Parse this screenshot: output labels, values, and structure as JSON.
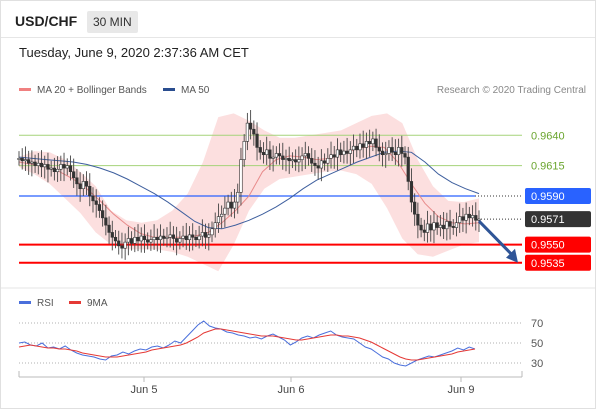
{
  "header": {
    "symbol": "USD/CHF",
    "timeframe": "30 MIN",
    "timestamp": "Tuesday, June 9, 2020 2:37:36 AM CET"
  },
  "chart_data": [
    {
      "type": "line",
      "title": "",
      "legend": [
        {
          "name": "MA 20 + Bollinger Bands",
          "color": "#f08080"
        },
        {
          "name": "MA 50",
          "color": "#2a4d8f"
        }
      ],
      "copyright": "Research © 2020 Trading Central",
      "ylim": [
        0.952,
        0.966
      ],
      "x_ticks": [
        "Jun 5",
        "Jun 6",
        "Jun 9"
      ],
      "levels": [
        {
          "value": 0.964,
          "label": "0.9640",
          "color": "#8bc34a",
          "kind": "resistance"
        },
        {
          "value": 0.9615,
          "label": "0.9615",
          "color": "#8bc34a",
          "kind": "resistance"
        },
        {
          "value": 0.959,
          "label": "0.9590",
          "color": "#2962ff",
          "kind": "pivot"
        },
        {
          "value": 0.9571,
          "label": "0.9571",
          "color": "#333333",
          "kind": "last"
        },
        {
          "value": 0.955,
          "label": "0.9550",
          "color": "#ff0000",
          "kind": "support"
        },
        {
          "value": 0.9535,
          "label": "0.9535",
          "color": "#ff0000",
          "kind": "support"
        }
      ],
      "series": [
        {
          "name": "Price",
          "values": [
            0.9621,
            0.9619,
            0.962,
            0.9617,
            0.9618,
            0.9615,
            0.9617,
            0.9614,
            0.9616,
            0.9612,
            0.9613,
            0.961,
            0.9612,
            0.9616,
            0.9613,
            0.9615,
            0.961,
            0.9605,
            0.96,
            0.9596,
            0.9602,
            0.9598,
            0.959,
            0.9586,
            0.9583,
            0.9578,
            0.9572,
            0.9566,
            0.956,
            0.9556,
            0.9553,
            0.9549,
            0.9547,
            0.9552,
            0.9555,
            0.9551,
            0.9556,
            0.9553,
            0.9557,
            0.9554,
            0.9552,
            0.9554,
            0.9556,
            0.9554,
            0.9557,
            0.9555,
            0.9556,
            0.9558,
            0.9555,
            0.9552,
            0.9555,
            0.9557,
            0.9554,
            0.9558,
            0.9556,
            0.9554,
            0.9557,
            0.956,
            0.9556,
            0.9558,
            0.9563,
            0.9568,
            0.9573,
            0.9575,
            0.958,
            0.9585,
            0.958,
            0.9585,
            0.9593,
            0.962,
            0.9635,
            0.965,
            0.9645,
            0.9641,
            0.963,
            0.9626,
            0.9624,
            0.9628,
            0.9621,
            0.9622,
            0.9625,
            0.9623,
            0.962,
            0.9621,
            0.9619,
            0.962,
            0.9618,
            0.962,
            0.9623,
            0.9625,
            0.9621,
            0.9617,
            0.9615,
            0.9613,
            0.9619,
            0.9617,
            0.9621,
            0.9624,
            0.9622,
            0.9628,
            0.9624,
            0.9627,
            0.9625,
            0.9628,
            0.9631,
            0.9628,
            0.9633,
            0.963,
            0.9635,
            0.9633,
            0.9637,
            0.963,
            0.9627,
            0.9624,
            0.9625,
            0.963,
            0.9626,
            0.9624,
            0.963,
            0.9625,
            0.9622,
            0.9602,
            0.9585,
            0.9575,
            0.9566,
            0.9562,
            0.956,
            0.9567,
            0.9562,
            0.9568,
            0.9564,
            0.9566,
            0.9563,
            0.9569,
            0.9565,
            0.9564,
            0.9568,
            0.9573,
            0.957,
            0.9575,
            0.9572,
            0.9574,
            0.957,
            0.9571
          ]
        },
        {
          "name": "MA 50",
          "values": [
            0.9622,
            0.9621,
            0.962,
            0.9619,
            0.9618,
            0.9616,
            0.9613,
            0.9609,
            0.9604,
            0.9598,
            0.9592,
            0.9585,
            0.9577,
            0.9569,
            0.9564,
            0.9563,
            0.9566,
            0.957,
            0.9575,
            0.9581,
            0.9588,
            0.9596,
            0.9603,
            0.9608,
            0.9613,
            0.9618,
            0.9622,
            0.9626,
            0.9627,
            0.9626,
            0.9618,
            0.9608,
            0.9601,
            0.9596,
            0.9592
          ]
        },
        {
          "name": "MA 20",
          "values": [
            0.9618,
            0.9616,
            0.9614,
            0.961,
            0.9604,
            0.9596,
            0.9586,
            0.9575,
            0.9566,
            0.9559,
            0.9556,
            0.9556,
            0.9556,
            0.9557,
            0.956,
            0.9568,
            0.9578,
            0.959,
            0.961,
            0.962,
            0.9623,
            0.9622,
            0.962,
            0.9621,
            0.9625,
            0.9629,
            0.9631,
            0.963,
            0.9618,
            0.96,
            0.9584,
            0.9573,
            0.9568,
            0.9567,
            0.9568
          ]
        }
      ],
      "bollinger_upper": [
        0.9622,
        0.9627,
        0.9626,
        0.962,
        0.961,
        0.9598,
        0.9578,
        0.957,
        0.9568,
        0.957,
        0.9578,
        0.9592,
        0.9618,
        0.9655,
        0.9658,
        0.9652,
        0.9644,
        0.9638,
        0.9638,
        0.964,
        0.9642,
        0.9644,
        0.965,
        0.9656,
        0.9658,
        0.965,
        0.962,
        0.9598,
        0.9586,
        0.9585,
        0.9588
      ],
      "bollinger_lower": [
        0.9614,
        0.9608,
        0.96,
        0.9588,
        0.9576,
        0.956,
        0.955,
        0.9546,
        0.9546,
        0.9546,
        0.9544,
        0.954,
        0.9534,
        0.9528,
        0.955,
        0.9578,
        0.9596,
        0.9604,
        0.9606,
        0.9608,
        0.961,
        0.9611,
        0.9608,
        0.96,
        0.958,
        0.9555,
        0.9542,
        0.954,
        0.9545,
        0.955,
        0.9552
      ],
      "projection": {
        "from": 0.9571,
        "to": 0.9535
      }
    },
    {
      "type": "line",
      "title": "",
      "legend": [
        {
          "name": "RSI",
          "color": "#4a6fdc"
        },
        {
          "name": "9MA",
          "color": "#e53935"
        }
      ],
      "ylim": [
        20,
        80
      ],
      "y_ticks": [
        "70",
        "50",
        "30"
      ],
      "series": [
        {
          "name": "RSI",
          "values": [
            50,
            51,
            48,
            47,
            50,
            45,
            46,
            44,
            47,
            43,
            40,
            38,
            37,
            36,
            34,
            33,
            37,
            38,
            41,
            39,
            42,
            44,
            43,
            46,
            47,
            45,
            48,
            52,
            50,
            56,
            62,
            68,
            72,
            67,
            65,
            64,
            61,
            60,
            58,
            57,
            55,
            56,
            54,
            57,
            59,
            56,
            53,
            48,
            51,
            55,
            57,
            55,
            58,
            60,
            62,
            58,
            56,
            55,
            54,
            50,
            46,
            44,
            40,
            36,
            34,
            30,
            28,
            27,
            30,
            33,
            35,
            37,
            36,
            38,
            40,
            42,
            45,
            43,
            46,
            44
          ]
        },
        {
          "name": "9MA",
          "values": [
            46,
            47,
            48,
            47,
            46,
            45,
            45,
            44,
            44,
            43,
            42,
            40,
            39,
            38,
            37,
            36,
            36,
            36,
            37,
            38,
            39,
            40,
            41,
            43,
            44,
            45,
            46,
            47,
            48,
            50,
            53,
            56,
            60,
            62,
            64,
            64,
            63,
            62,
            61,
            60,
            59,
            58,
            57,
            57,
            57,
            56,
            55,
            54,
            53,
            53,
            54,
            55,
            56,
            57,
            58,
            58,
            57,
            57,
            56,
            55,
            53,
            51,
            48,
            45,
            42,
            39,
            36,
            34,
            33,
            33,
            34,
            35,
            36,
            37,
            38,
            39,
            41,
            42,
            43,
            44
          ]
        }
      ]
    }
  ]
}
